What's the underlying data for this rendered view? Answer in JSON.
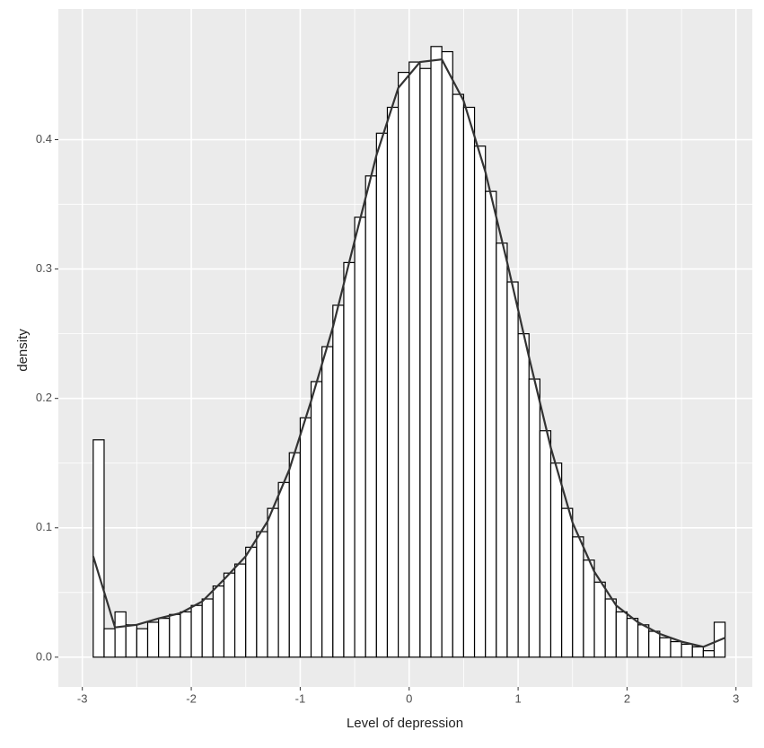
{
  "chart_data": {
    "type": "histogram",
    "xlabel": "Level of depression",
    "ylabel": "density",
    "bins": [
      -2.9,
      -2.8,
      -2.7,
      -2.6,
      -2.5,
      -2.4,
      -2.3,
      -2.2,
      -2.1,
      -2.0,
      -1.9,
      -1.8,
      -1.7,
      -1.6,
      -1.5,
      -1.4,
      -1.3,
      -1.2,
      -1.1,
      -1.0,
      -0.9,
      -0.8,
      -0.7,
      -0.6,
      -0.5,
      -0.4,
      -0.3,
      -0.2,
      -0.1,
      0.0,
      0.1,
      0.2,
      0.3,
      0.4,
      0.5,
      0.6,
      0.7,
      0.8,
      0.9,
      1.0,
      1.1,
      1.2,
      1.3,
      1.4,
      1.5,
      1.6,
      1.7,
      1.8,
      1.9,
      2.0,
      2.1,
      2.2,
      2.3,
      2.4,
      2.5,
      2.6,
      2.7,
      2.8,
      2.9
    ],
    "values": [
      0.168,
      0.022,
      0.035,
      0.025,
      0.022,
      0.027,
      0.03,
      0.033,
      0.035,
      0.04,
      0.045,
      0.055,
      0.065,
      0.072,
      0.085,
      0.097,
      0.115,
      0.135,
      0.158,
      0.185,
      0.213,
      0.24,
      0.272,
      0.305,
      0.34,
      0.372,
      0.405,
      0.425,
      0.452,
      0.46,
      0.455,
      0.472,
      0.468,
      0.435,
      0.425,
      0.395,
      0.36,
      0.32,
      0.29,
      0.25,
      0.215,
      0.175,
      0.15,
      0.115,
      0.093,
      0.075,
      0.058,
      0.045,
      0.035,
      0.03,
      0.025,
      0.02,
      0.015,
      0.012,
      0.01,
      0.008,
      0.005,
      0.027
    ],
    "density_x": [
      -2.9,
      -2.7,
      -2.5,
      -2.3,
      -2.1,
      -1.9,
      -1.7,
      -1.5,
      -1.3,
      -1.1,
      -0.9,
      -0.7,
      -0.5,
      -0.3,
      -0.1,
      0.1,
      0.3,
      0.5,
      0.7,
      0.9,
      1.1,
      1.3,
      1.5,
      1.7,
      1.9,
      2.1,
      2.3,
      2.5,
      2.7,
      2.9
    ],
    "density": [
      0.078,
      0.023,
      0.025,
      0.03,
      0.034,
      0.043,
      0.06,
      0.078,
      0.105,
      0.145,
      0.198,
      0.255,
      0.322,
      0.388,
      0.44,
      0.46,
      0.462,
      0.43,
      0.375,
      0.305,
      0.232,
      0.162,
      0.104,
      0.066,
      0.04,
      0.027,
      0.018,
      0.012,
      0.008,
      0.015
    ],
    "color": "#ffffff",
    "edge_color": "#000000",
    "line_color": "#333333",
    "xlim": [
      -3.22,
      3.15
    ],
    "ylim": [
      -0.023,
      0.501
    ],
    "xticks": [
      -3,
      -2,
      -1,
      0,
      1,
      2,
      3
    ],
    "yticks": [
      {
        "value": 0,
        "label": "0.0"
      },
      0.1,
      0.2,
      0.3,
      0.4
    ],
    "grid": true,
    "minor_grid": true,
    "background": "#ebebeb"
  }
}
